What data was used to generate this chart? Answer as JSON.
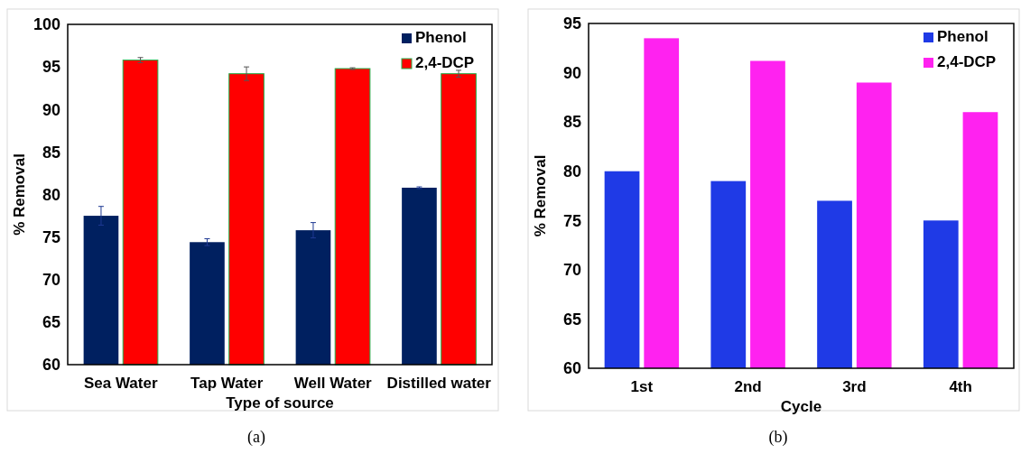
{
  "chart_data": [
    {
      "type": "bar",
      "xlabel": "Type of source",
      "ylabel": "% Removal",
      "categories": [
        "Sea Water",
        "Tap Water",
        "Well Water",
        "Distilled water"
      ],
      "series": [
        {
          "name": "Phenol",
          "color": "#002060",
          "values": [
            77.5,
            74.4,
            75.8,
            80.8
          ],
          "errors": [
            1.1,
            0.4,
            0.9,
            0.1
          ]
        },
        {
          "name": "2,4-DCP",
          "color": "#ff0000",
          "values": [
            95.8,
            94.2,
            94.8,
            94.2
          ],
          "errors": [
            0.3,
            0.8,
            0.1,
            0.4
          ]
        }
      ],
      "ylim": [
        60,
        100
      ],
      "yticks": [
        60,
        65,
        70,
        75,
        80,
        85,
        90,
        95,
        100
      ],
      "grid": false,
      "legend": "top right",
      "annotations": [
        "(a)"
      ]
    },
    {
      "type": "bar",
      "xlabel": "Cycle",
      "ylabel": "% Removal",
      "categories": [
        "1st",
        "2nd",
        "3rd",
        "4th"
      ],
      "series": [
        {
          "name": "Phenol",
          "color": "#1f3ae6",
          "values": [
            80.0,
            79.0,
            77.0,
            75.0
          ]
        },
        {
          "name": "2,4-DCP",
          "color": "#ff22f0",
          "values": [
            93.5,
            91.2,
            89.0,
            86.0
          ]
        }
      ],
      "ylim": [
        60,
        95
      ],
      "yticks": [
        60,
        65,
        70,
        75,
        80,
        85,
        90,
        95
      ],
      "grid": false,
      "legend": "top right",
      "annotations": [
        "(b)"
      ]
    }
  ]
}
